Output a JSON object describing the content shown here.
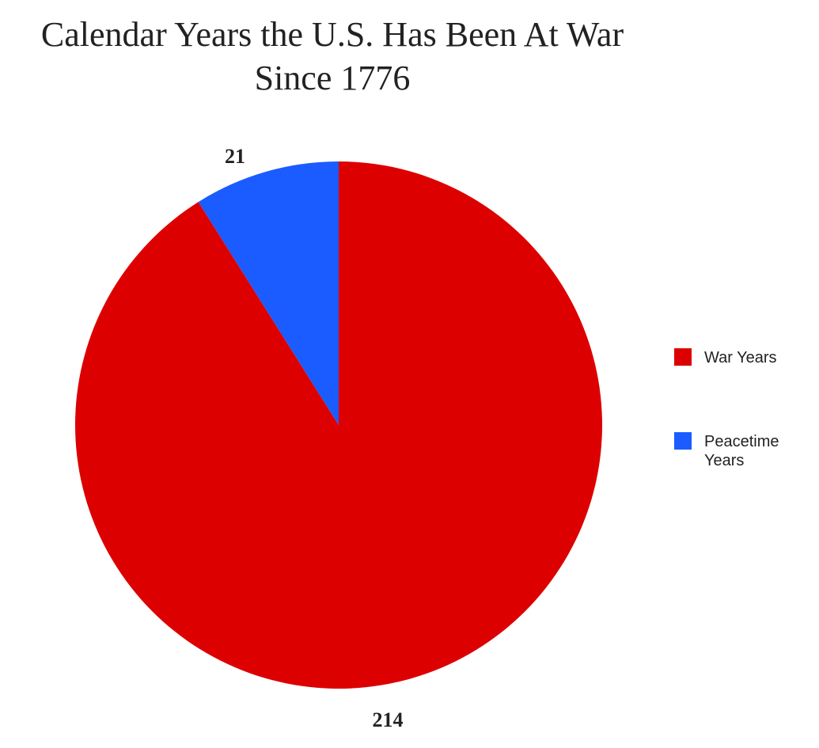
{
  "chart_data": {
    "type": "pie",
    "title": "Calendar Years the U.S. Has Been At War Since 1776",
    "categories": [
      "War Years",
      "Peacetime Years"
    ],
    "values": [
      214,
      21
    ],
    "colors": [
      "#dd0000",
      "#1a5cff"
    ],
    "legend": "right"
  }
}
